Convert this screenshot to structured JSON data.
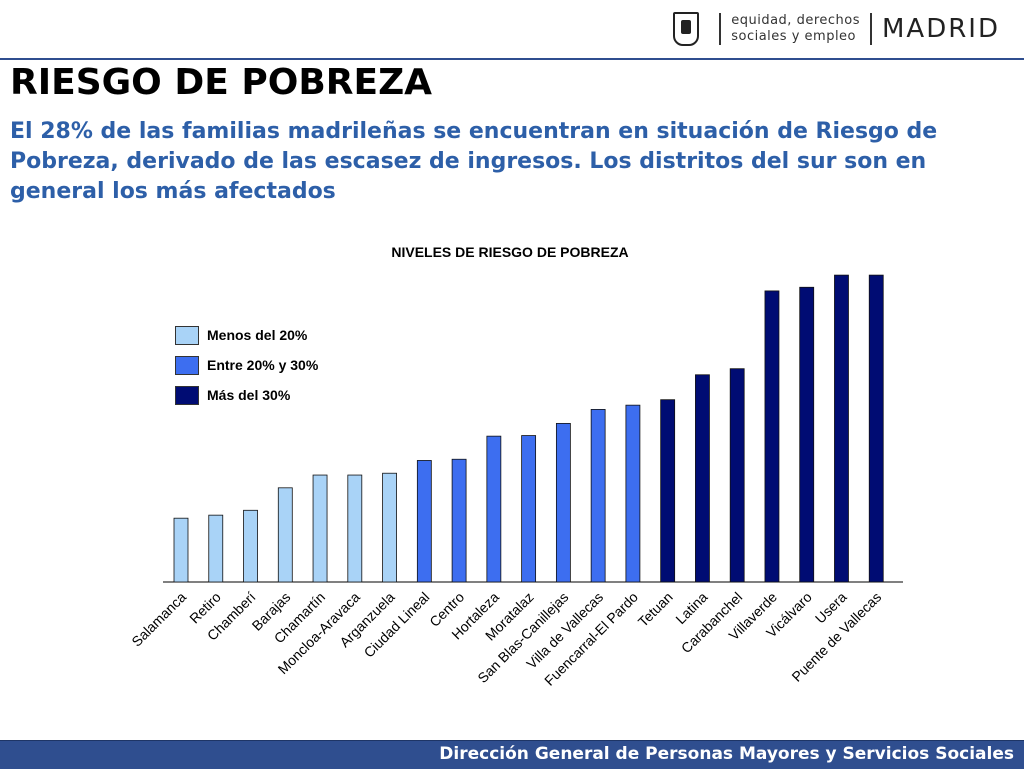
{
  "header": {
    "logo_sub_line1": "equidad, derechos",
    "logo_sub_line2": "sociales y empleo",
    "logo_main": "MADRID"
  },
  "title": "RIESGO DE POBREZA",
  "subtitle": "El 28% de las familias madrileñas se encuentran en situación de Riesgo de Pobreza, derivado de las escasez de ingresos. Los distritos del sur son en general los más afectados",
  "footer": "Dirección General de Personas Mayores y Servicios Sociales",
  "colors": {
    "low": "#a9d3f7",
    "mid": "#3d6ef0",
    "high": "#000c73",
    "title_blue": "#2d5fa8",
    "bar_footer": "#2f4e8f"
  },
  "chart_data": {
    "type": "bar",
    "title": "NIVELES DE RIESGO DE POBREZA",
    "xlabel": "",
    "ylabel": "",
    "legend_position": "top-left",
    "grid": false,
    "legend": [
      {
        "label": "Menos del 20%",
        "color_key": "low"
      },
      {
        "label": "Entre 20% y 30%",
        "color_key": "mid"
      },
      {
        "label": "Más del 30%",
        "color_key": "high"
      }
    ],
    "categories": [
      "Salamanca",
      "Retiro",
      "Chamberí",
      "Barajas",
      "Chamartín",
      "Moncloa-Aravaca",
      "Arganzuela",
      "Ciudad Lineal",
      "Centro",
      "Hortaleza",
      "Moratalaz",
      "San Blas-Canillejas",
      "Villa de Vallecas",
      "Fuencarral-El Pardo",
      "Tetuan",
      "Latina",
      "Carabanchel",
      "Villaverde",
      "Vicálvaro",
      "Usera",
      "Puente de Vallecas"
    ],
    "values": [
      10.5,
      11,
      11.8,
      15.5,
      17.6,
      17.6,
      17.9,
      20,
      20.2,
      24,
      24.1,
      26.1,
      28.4,
      29.1,
      30,
      34.1,
      35.1,
      47.9,
      48.5,
      50.5,
      50.5
    ],
    "levels": [
      "low",
      "low",
      "low",
      "low",
      "low",
      "low",
      "low",
      "mid",
      "mid",
      "mid",
      "mid",
      "mid",
      "mid",
      "mid",
      "high",
      "high",
      "high",
      "high",
      "high",
      "high",
      "high"
    ],
    "ylim": [
      0,
      52
    ]
  }
}
